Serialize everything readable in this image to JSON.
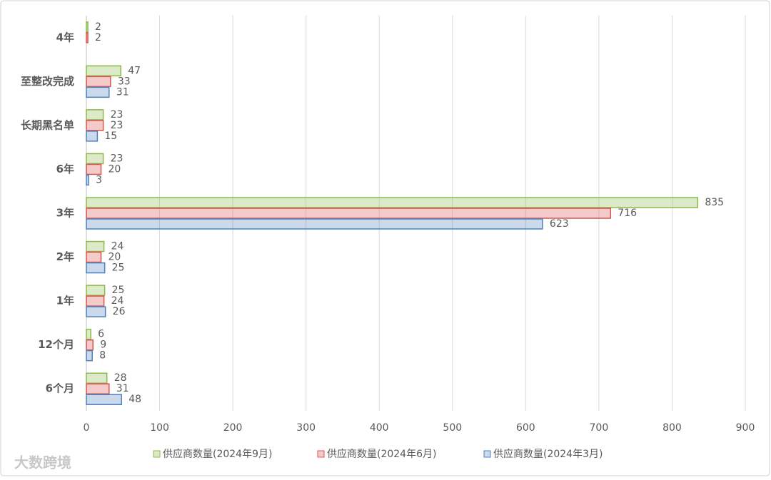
{
  "chart_data": {
    "type": "hbar",
    "categories": [
      "6个月",
      "12个月",
      "1年",
      "2年",
      "3年",
      "6年",
      "长期黑名单",
      "至整改完成",
      "4年"
    ],
    "series": [
      {
        "name": "供应商数量(2024年9月)",
        "color": "#8cb94b",
        "values": [
          28,
          6,
          25,
          24,
          835,
          23,
          23,
          47,
          2
        ]
      },
      {
        "name": "供应商数量(2024年6月)",
        "color": "#d9534f",
        "values": [
          31,
          9,
          24,
          20,
          716,
          20,
          23,
          33,
          2
        ]
      },
      {
        "name": "供应商数量(2024年3月)",
        "color": "#4f81bd",
        "values": [
          48,
          8,
          26,
          25,
          623,
          3,
          15,
          31,
          null
        ]
      }
    ],
    "xlim": [
      0,
      900
    ],
    "xticks": [
      0,
      100,
      200,
      300,
      400,
      500,
      600,
      700,
      800,
      900
    ],
    "grid": true,
    "legend": "bottom",
    "watermark": "大数跨境"
  }
}
